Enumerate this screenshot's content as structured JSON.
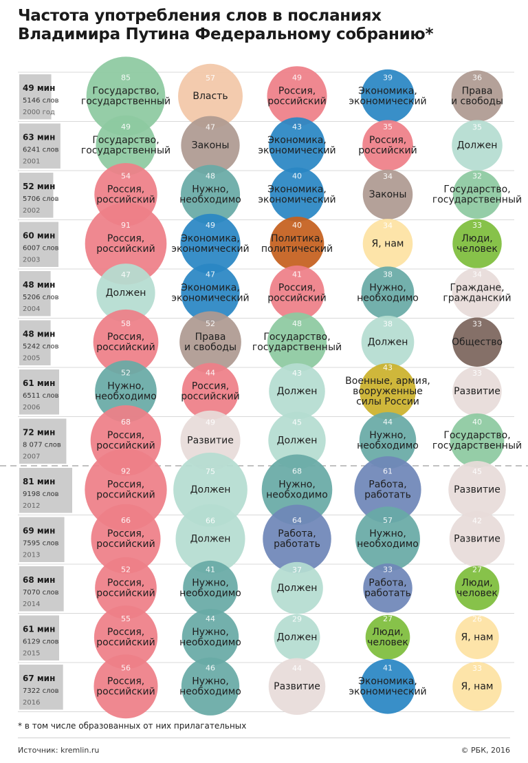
{
  "title_lines": [
    "Частота употребления слов в посланиях",
    "Владимира Путина Федеральному собранию*"
  ],
  "footnote": "* в том числе образованных от них прилагательных",
  "source": "Источник: kremlin.ru",
  "copyright": "© РБК, 2016",
  "colors": {
    "state": "#8dc9a0",
    "power": "#f2c7a8",
    "russia": "#ee7f88",
    "economy": "#2a87c4",
    "rights": "#ae9a91",
    "laws": "#ae9a91",
    "must": "#b5ddd1",
    "need": "#68aaa6",
    "politics": "#c5601e",
    "we": "#fde2a2",
    "people": "#7ebd3c",
    "citizens": "#e7dcd9",
    "society": "#7c655d",
    "military": "#cbb22c",
    "development": "#e7dcd9",
    "work": "#6f86b8",
    "bar": "#cccccc"
  },
  "chart_data": {
    "type": "bubble",
    "description_units": "word count per address",
    "max_minutes": 81,
    "rows": [
      {
        "duration": "49 мин",
        "words": "5146 слов",
        "year": "2000 год",
        "minutes": 49,
        "items": [
          {
            "label": "Государство,\nгосударственный",
            "value": 85,
            "color": "state"
          },
          {
            "label": "Власть",
            "value": 57,
            "color": "power"
          },
          {
            "label": "Россия,\nроссийский",
            "value": 49,
            "color": "russia"
          },
          {
            "label": "Экономика,\nэкономический",
            "value": 39,
            "color": "economy"
          },
          {
            "label": "Права\nи свободы",
            "value": 36,
            "color": "rights"
          }
        ]
      },
      {
        "duration": "63 мин",
        "words": "6241 слов",
        "year": "2001",
        "minutes": 63,
        "items": [
          {
            "label": "Государство,\nгосударственный",
            "value": 49,
            "color": "state"
          },
          {
            "label": "Законы",
            "value": 47,
            "color": "laws"
          },
          {
            "label": "Экономика,\nэкономический",
            "value": 43,
            "color": "economy"
          },
          {
            "label": "Россия,\nроссийский",
            "value": 35,
            "color": "russia"
          },
          {
            "label": "Должен",
            "value": 35,
            "color": "must"
          }
        ]
      },
      {
        "duration": "52 мин",
        "words": "5706 слов",
        "year": "2002",
        "minutes": 52,
        "items": [
          {
            "label": "Россия,\nроссийский",
            "value": 54,
            "color": "russia"
          },
          {
            "label": "Нужно,\nнеобходимо",
            "value": 48,
            "color": "need"
          },
          {
            "label": "Экономика,\nэкономический",
            "value": 40,
            "color": "economy"
          },
          {
            "label": "Законы",
            "value": 34,
            "color": "laws"
          },
          {
            "label": "Государство,\nгосударственный",
            "value": 32,
            "color": "state"
          }
        ]
      },
      {
        "duration": "60 мин",
        "words": "6007 слов",
        "year": "2003",
        "minutes": 60,
        "items": [
          {
            "label": "Россия,\nроссийский",
            "value": 91,
            "color": "russia"
          },
          {
            "label": "Экономика,\nэкономический",
            "value": 49,
            "color": "economy"
          },
          {
            "label": "Политика,\nполитический",
            "value": 40,
            "color": "politics"
          },
          {
            "label": "Я, нам",
            "value": 34,
            "color": "we"
          },
          {
            "label": "Люди,\nчеловек",
            "value": 33,
            "color": "people"
          }
        ]
      },
      {
        "duration": "48 мин",
        "words": "5206 слов",
        "year": "2004",
        "minutes": 48,
        "items": [
          {
            "label": "Должен",
            "value": 47,
            "color": "must"
          },
          {
            "label": "Экономика,\nэкономический",
            "value": 47,
            "color": "economy"
          },
          {
            "label": "Россия,\nроссийский",
            "value": 41,
            "color": "russia"
          },
          {
            "label": "Нужно,\nнеобходимо",
            "value": 38,
            "color": "need"
          },
          {
            "label": "Граждане,\nгражданский",
            "value": 34,
            "color": "citizens"
          }
        ]
      },
      {
        "duration": "48 мин",
        "words": "5242 слов",
        "year": "2005",
        "minutes": 48,
        "items": [
          {
            "label": "Россия,\nроссийский",
            "value": 58,
            "color": "russia"
          },
          {
            "label": "Права\nи свободы",
            "value": 52,
            "color": "rights"
          },
          {
            "label": "Государство,\nгосударственный",
            "value": 48,
            "color": "state"
          },
          {
            "label": "Должен",
            "value": 38,
            "color": "must"
          },
          {
            "label": "Общество",
            "value": 33,
            "color": "society"
          }
        ]
      },
      {
        "duration": "61 мин",
        "words": "6511 слов",
        "year": "2006",
        "minutes": 61,
        "items": [
          {
            "label": "Нужно,\nнеобходимо",
            "value": 52,
            "color": "need"
          },
          {
            "label": "Россия,\nроссийский",
            "value": 44,
            "color": "russia"
          },
          {
            "label": "Должен",
            "value": 43,
            "color": "must"
          },
          {
            "label": "Военные, армия,\nвооруженные\nсилы России",
            "value": 43,
            "color": "military"
          },
          {
            "label": "Развитие",
            "value": 33,
            "color": "development"
          }
        ]
      },
      {
        "duration": "72 мин",
        "words": "8 077 слов",
        "year": "2007",
        "minutes": 72,
        "items": [
          {
            "label": "Россия,\nроссийский",
            "value": 68,
            "color": "russia"
          },
          {
            "label": "Развитие",
            "value": 49,
            "color": "development"
          },
          {
            "label": "Должен",
            "value": 45,
            "color": "must"
          },
          {
            "label": "Нужно,\nнеобходимо",
            "value": 44,
            "color": "need"
          },
          {
            "label": "Государство,\nгосударственный",
            "value": 40,
            "color": "state"
          }
        ]
      },
      {
        "duration": "81 мин",
        "words": "9198 слов",
        "year": "2012",
        "minutes": 81,
        "items": [
          {
            "label": "Россия,\nроссийский",
            "value": 92,
            "color": "russia"
          },
          {
            "label": "Должен",
            "value": 75,
            "color": "must"
          },
          {
            "label": "Нужно,\nнеобходимо",
            "value": 68,
            "color": "need"
          },
          {
            "label": "Работа,\nработать",
            "value": 61,
            "color": "work"
          },
          {
            "label": "Развитие",
            "value": 45,
            "color": "development"
          }
        ]
      },
      {
        "duration": "69 мин",
        "words": "7595 слов",
        "year": "2013",
        "minutes": 69,
        "items": [
          {
            "label": "Россия,\nроссийский",
            "value": 66,
            "color": "russia"
          },
          {
            "label": "Должен",
            "value": 66,
            "color": "must"
          },
          {
            "label": "Работа,\nработать",
            "value": 64,
            "color": "work"
          },
          {
            "label": "Нужно,\nнеобходимо",
            "value": 57,
            "color": "need"
          },
          {
            "label": "Развитие",
            "value": 42,
            "color": "development"
          }
        ]
      },
      {
        "duration": "68 мин",
        "words": "7070 слов",
        "year": "2014",
        "minutes": 68,
        "items": [
          {
            "label": "Россия,\nроссийский",
            "value": 52,
            "color": "russia"
          },
          {
            "label": "Нужно,\nнеобходимо",
            "value": 41,
            "color": "need"
          },
          {
            "label": "Должен",
            "value": 37,
            "color": "must"
          },
          {
            "label": "Работа,\nработать",
            "value": 33,
            "color": "work"
          },
          {
            "label": "Люди,\nчеловек",
            "value": 27,
            "color": "people"
          }
        ]
      },
      {
        "duration": "61 мин",
        "words": "6129 слов",
        "year": "2015",
        "minutes": 61,
        "items": [
          {
            "label": "Россия,\nроссийский",
            "value": 55,
            "color": "russia"
          },
          {
            "label": "Нужно,\nнеобходимо",
            "value": 44,
            "color": "need"
          },
          {
            "label": "Должен",
            "value": 29,
            "color": "must"
          },
          {
            "label": "Люди,\nчеловек",
            "value": 27,
            "color": "people"
          },
          {
            "label": "Я, нам",
            "value": 26,
            "color": "we"
          }
        ]
      },
      {
        "duration": "67 мин",
        "words": "7322 слов",
        "year": "2016",
        "minutes": 67,
        "items": [
          {
            "label": "Россия,\nроссийский",
            "value": 56,
            "color": "russia"
          },
          {
            "label": "Нужно,\nнеобходимо",
            "value": 46,
            "color": "need"
          },
          {
            "label": "Развитие",
            "value": 44,
            "color": "development"
          },
          {
            "label": "Экономика,\nэкономический",
            "value": 41,
            "color": "economy"
          },
          {
            "label": "Я, нам",
            "value": 33,
            "color": "we"
          }
        ]
      }
    ]
  }
}
